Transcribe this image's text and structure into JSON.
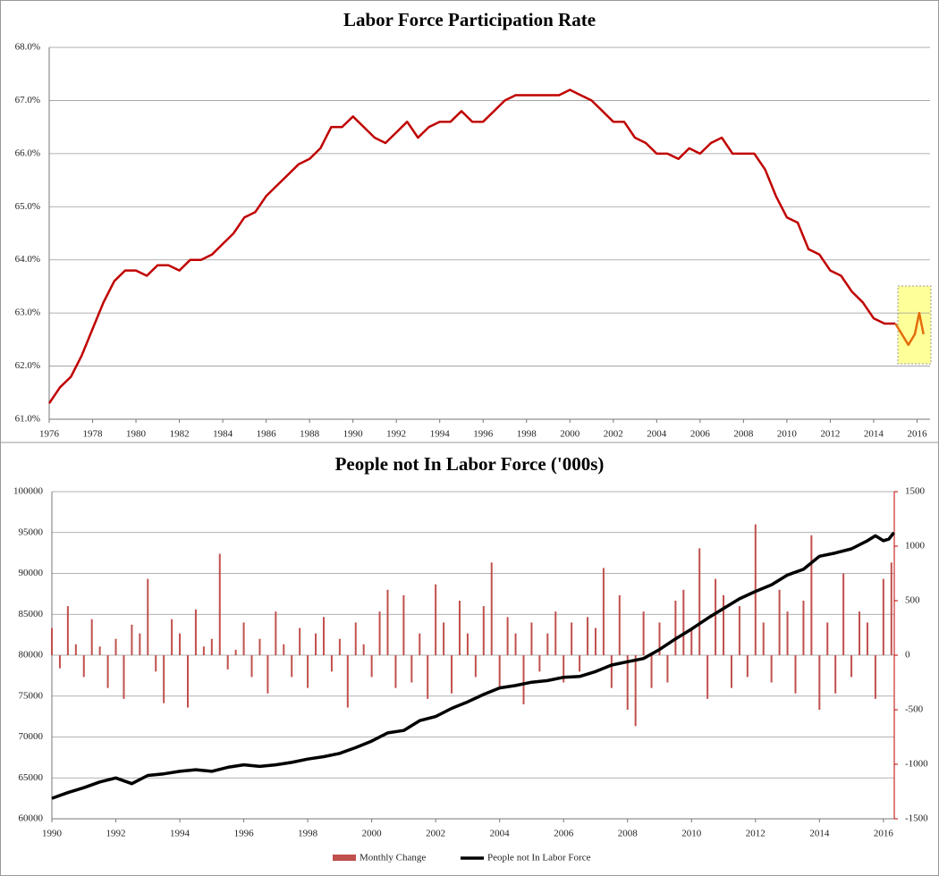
{
  "chart_data": [
    {
      "type": "line",
      "title": "Labor Force Participation Rate",
      "xlim": [
        1976,
        2016.6
      ],
      "xticks": [
        1976,
        1978,
        1980,
        1982,
        1984,
        1986,
        1988,
        1990,
        1992,
        1994,
        1996,
        1998,
        2000,
        2002,
        2004,
        2006,
        2008,
        2010,
        2012,
        2014,
        2016
      ],
      "ylim": [
        61,
        68
      ],
      "yticks": [
        {
          "value": 61,
          "label": "61.0%"
        },
        {
          "value": 62,
          "label": "62.0%"
        },
        {
          "value": 63,
          "label": "63.0%"
        },
        {
          "value": 64,
          "label": "64.0%"
        },
        {
          "value": 65,
          "label": "65.0%"
        },
        {
          "value": 66,
          "label": "66.0%"
        },
        {
          "value": 67,
          "label": "67.0%"
        },
        {
          "value": 68,
          "label": "68.0%"
        }
      ],
      "grid": true,
      "series": [
        {
          "color": "#c00000",
          "x": [
            1976,
            1976.5,
            1977,
            1977.5,
            1978,
            1978.5,
            1979,
            1979.5,
            1980,
            1980.5,
            1981,
            1981.5,
            1982,
            1982.5,
            1983,
            1983.5,
            1984,
            1984.5,
            1985,
            1985.5,
            1986,
            1986.5,
            1987,
            1987.5,
            1988,
            1988.5,
            1989,
            1989.5,
            1990,
            1990.5,
            1991,
            1991.5,
            1992,
            1992.5,
            1993,
            1993.5,
            1994,
            1994.5,
            1995,
            1995.5,
            1996,
            1996.5,
            1997,
            1997.5,
            1998,
            1998.5,
            1999,
            1999.5,
            2000,
            2000.5,
            2001,
            2001.5,
            2002,
            2002.5,
            2003,
            2003.5,
            2004,
            2004.5,
            2005,
            2005.5,
            2006,
            2006.5,
            2007,
            2007.5,
            2008,
            2008.5,
            2009,
            2009.5,
            2010,
            2010.5,
            2011,
            2011.5,
            2012,
            2012.5,
            2013,
            2013.5,
            2014,
            2014.5,
            2015
          ],
          "values": [
            61.3,
            61.6,
            61.8,
            62.2,
            62.7,
            63.2,
            63.6,
            63.8,
            63.8,
            63.7,
            63.9,
            63.9,
            63.8,
            64.0,
            64.0,
            64.1,
            64.3,
            64.5,
            64.8,
            64.9,
            65.2,
            65.4,
            65.6,
            65.8,
            65.9,
            66.1,
            66.5,
            66.5,
            66.7,
            66.5,
            66.3,
            66.2,
            66.4,
            66.6,
            66.3,
            66.5,
            66.6,
            66.6,
            66.8,
            66.6,
            66.6,
            66.8,
            67.0,
            67.1,
            67.1,
            67.1,
            67.1,
            67.1,
            67.2,
            67.1,
            67.0,
            66.8,
            66.6,
            66.6,
            66.3,
            66.2,
            66.0,
            66.0,
            65.9,
            66.1,
            66.0,
            66.2,
            66.3,
            66.0,
            66.0,
            66.0,
            65.7,
            65.2,
            64.8,
            64.7,
            64.2,
            64.1,
            63.8,
            63.7,
            63.4,
            63.2,
            62.9,
            62.8,
            62.8
          ]
        },
        {
          "color": "#e46c0a",
          "x": [
            2015,
            2015.3,
            2015.6,
            2015.9,
            2016.1,
            2016.3
          ],
          "values": [
            62.8,
            62.6,
            62.4,
            62.6,
            63.0,
            62.6
          ]
        }
      ]
    },
    {
      "type": "combo",
      "title": "People not In Labor Force ('000s)",
      "xlim": [
        1990,
        2016.34
      ],
      "xticks": [
        1990,
        1992,
        1994,
        1996,
        1998,
        2000,
        2002,
        2004,
        2006,
        2008,
        2010,
        2012,
        2014,
        2016
      ],
      "ylim": [
        60000,
        100000
      ],
      "yticks": [
        60000,
        65000,
        70000,
        75000,
        80000,
        85000,
        90000,
        95000,
        100000
      ],
      "y2lim": [
        -1500,
        1500
      ],
      "y2ticks": [
        -1500,
        -1000,
        -500,
        0,
        500,
        1000,
        1500
      ],
      "grid": true,
      "legend": "bottom",
      "series": [
        {
          "name": "Monthly Change",
          "type": "bar",
          "axis": "y2",
          "color": "#c0504d",
          "x": [
            1990,
            1990.25,
            1990.5,
            1990.75,
            1991,
            1991.25,
            1991.5,
            1991.75,
            1992,
            1992.25,
            1992.5,
            1992.75,
            1993,
            1993.25,
            1993.5,
            1993.75,
            1994,
            1994.25,
            1994.5,
            1994.75,
            1995,
            1995.25,
            1995.5,
            1995.75,
            1996,
            1996.25,
            1996.5,
            1996.75,
            1997,
            1997.25,
            1997.5,
            1997.75,
            1998,
            1998.25,
            1998.5,
            1998.75,
            1999,
            1999.25,
            1999.5,
            1999.75,
            2000,
            2000.25,
            2000.5,
            2000.75,
            2001,
            2001.25,
            2001.5,
            2001.75,
            2002,
            2002.25,
            2002.5,
            2002.75,
            2003,
            2003.25,
            2003.5,
            2003.75,
            2004,
            2004.25,
            2004.5,
            2004.75,
            2005,
            2005.25,
            2005.5,
            2005.75,
            2006,
            2006.25,
            2006.5,
            2006.75,
            2007,
            2007.25,
            2007.5,
            2007.75,
            2008,
            2008.25,
            2008.5,
            2008.75,
            2009,
            2009.25,
            2009.5,
            2009.75,
            2010,
            2010.25,
            2010.5,
            2010.75,
            2011,
            2011.25,
            2011.5,
            2011.75,
            2012,
            2012.25,
            2012.5,
            2012.75,
            2013,
            2013.25,
            2013.5,
            2013.75,
            2014,
            2014.25,
            2014.5,
            2014.75,
            2015,
            2015.25,
            2015.5,
            2015.75,
            2016,
            2016.25
          ],
          "values": [
            250,
            -120,
            450,
            100,
            -200,
            330,
            80,
            -300,
            150,
            -400,
            280,
            200,
            700,
            -150,
            -440,
            330,
            200,
            -480,
            420,
            80,
            150,
            930,
            -130,
            50,
            300,
            -200,
            150,
            -350,
            400,
            100,
            -200,
            250,
            -300,
            200,
            350,
            -150,
            150,
            -480,
            300,
            100,
            -200,
            400,
            600,
            -300,
            550,
            -250,
            200,
            -400,
            650,
            300,
            -350,
            500,
            200,
            -200,
            450,
            850,
            -300,
            350,
            200,
            -450,
            300,
            -150,
            200,
            400,
            -250,
            300,
            -150,
            350,
            250,
            800,
            -300,
            550,
            -500,
            -650,
            400,
            -300,
            300,
            -250,
            500,
            600,
            250,
            980,
            -400,
            700,
            550,
            -300,
            450,
            -200,
            1200,
            300,
            -250,
            600,
            400,
            -350,
            500,
            1100,
            -500,
            300,
            -350,
            750,
            -200,
            400,
            300,
            -400,
            700,
            850
          ]
        },
        {
          "name": "People not In Labor Force",
          "type": "line",
          "color": "#000000",
          "x": [
            1990,
            1990.5,
            1991,
            1991.5,
            1992,
            1992.5,
            1993,
            1993.5,
            1994,
            1994.5,
            1995,
            1995.5,
            1996,
            1996.5,
            1997,
            1997.5,
            1998,
            1998.5,
            1999,
            1999.5,
            2000,
            2000.5,
            2001,
            2001.5,
            2002,
            2002.5,
            2003,
            2003.5,
            2004,
            2004.5,
            2005,
            2005.5,
            2006,
            2006.5,
            2007,
            2007.5,
            2008,
            2008.5,
            2009,
            2009.5,
            2010,
            2010.5,
            2011,
            2011.5,
            2012,
            2012.5,
            2013,
            2013.5,
            2014,
            2014.5,
            2015,
            2015.5,
            2015.75,
            2016,
            2016.17,
            2016.33
          ],
          "values": [
            62500,
            63200,
            63800,
            64500,
            65000,
            64300,
            65300,
            65500,
            65800,
            66000,
            65800,
            66300,
            66600,
            66400,
            66600,
            66900,
            67300,
            67600,
            68000,
            68700,
            69500,
            70500,
            70800,
            72000,
            72500,
            73500,
            74300,
            75200,
            76000,
            76300,
            76700,
            76900,
            77300,
            77400,
            78000,
            78800,
            79200,
            79600,
            80700,
            82000,
            83200,
            84500,
            85700,
            86900,
            87800,
            88600,
            89800,
            90500,
            92100,
            92500,
            93000,
            94000,
            94600,
            94000,
            94200,
            95000
          ]
        }
      ]
    }
  ]
}
